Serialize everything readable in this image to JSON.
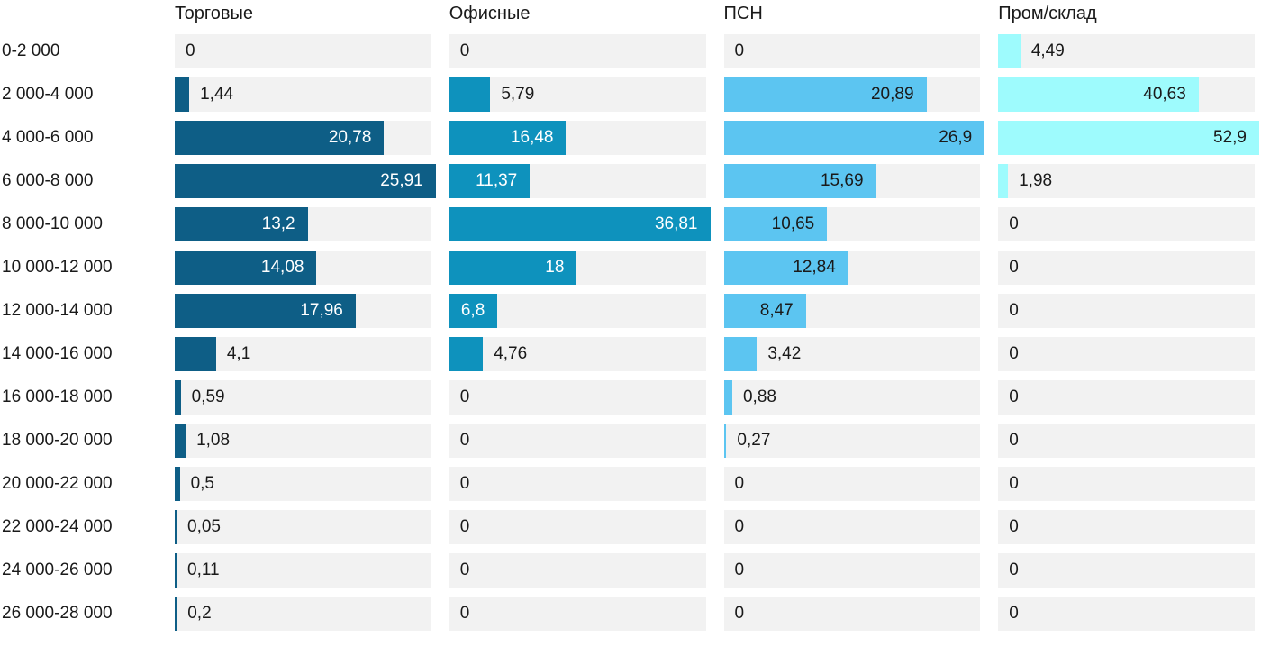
{
  "chart_data": {
    "type": "bar",
    "orientation": "horizontal",
    "layout": "small-multiples per column, each column scaled to its own max value",
    "grid": "off",
    "legend": "none (column headers act as series labels)",
    "decimal_separator": ",",
    "track_color": "#f2f2f2",
    "text_color": "#1a1a1a",
    "categories": [
      "0-2 000",
      "2 000-4 000",
      "4 000-6 000",
      "6 000-8 000",
      "8 000-10 000",
      "10 000-12 000",
      "12 000-14 000",
      "14 000-16 000",
      "16 000-18 000",
      "18 000-20 000",
      "20 000-22 000",
      "22 000-24 000",
      "24 000-26 000",
      "26 000-28 000"
    ],
    "series": [
      {
        "name": "Торговые",
        "bar_color": "#0e5e86",
        "inside_label_color": "#ffffff",
        "max_value": 25.91,
        "values": [
          "0",
          "1,44",
          "20,78",
          "25,91",
          "13,2",
          "14,08",
          "17,96",
          "4,1",
          "0,59",
          "1,08",
          "0,5",
          "0,05",
          "0,11",
          "0,2"
        ]
      },
      {
        "name": "Офисные",
        "bar_color": "#0e92bd",
        "inside_label_color": "#ffffff",
        "max_value": 36.81,
        "values": [
          "0",
          "5,79",
          "16,48",
          "11,37",
          "36,81",
          "18",
          "6,8",
          "4,76",
          "0",
          "0",
          "0",
          "0",
          "0",
          "0"
        ]
      },
      {
        "name": "ПСН",
        "bar_color": "#5cc5f1",
        "inside_label_color": "#1a1a1a",
        "max_value": 26.9,
        "values": [
          "0",
          "20,89",
          "26,9",
          "15,69",
          "10,65",
          "12,84",
          "8,47",
          "3,42",
          "0,88",
          "0,27",
          "0",
          "0",
          "0",
          "0"
        ]
      },
      {
        "name": "Пром/склад",
        "bar_color": "#9efbfd",
        "inside_label_color": "#1a1a1a",
        "max_value": 52.9,
        "values": [
          "4,49",
          "40,63",
          "52,9",
          "1,98",
          "0",
          "0",
          "0",
          "0",
          "0",
          "0",
          "0",
          "0",
          "0",
          "0"
        ]
      }
    ]
  }
}
